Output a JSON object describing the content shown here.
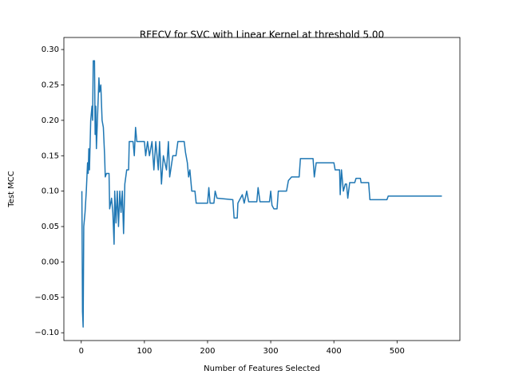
{
  "chart_data": {
    "type": "line",
    "title": "RFECV for SVC with Linear Kernel at threshold 5.00",
    "x_label": "Number of Features Selected",
    "y_label": "Test MCC",
    "x": [
      1,
      2,
      3,
      4,
      6,
      8,
      10,
      11,
      12,
      13,
      15,
      17,
      18,
      19,
      21,
      22,
      23,
      24,
      26,
      28,
      29,
      31,
      33,
      35,
      37,
      38,
      40,
      44,
      45,
      48,
      50,
      52,
      53,
      55,
      57,
      59,
      61,
      63,
      65,
      67,
      69,
      72,
      75,
      76,
      82,
      84,
      86,
      88,
      100,
      102,
      105,
      108,
      112,
      115,
      118,
      122,
      124,
      127,
      130,
      135,
      138,
      140,
      145,
      150,
      153,
      163,
      165,
      168,
      170,
      172,
      175,
      180,
      182,
      200,
      202,
      204,
      210,
      212,
      215,
      240,
      242,
      247,
      248,
      255,
      258,
      262,
      265,
      278,
      280,
      283,
      298,
      300,
      302,
      305,
      310,
      312,
      325,
      328,
      333,
      345,
      347,
      367,
      369,
      372,
      400,
      402,
      409,
      410,
      412,
      415,
      418,
      420,
      422,
      425,
      433,
      435,
      442,
      443,
      455,
      457,
      484,
      486,
      571
    ],
    "series": [
      {
        "name": "Test MCC",
        "color": "#1f77b4",
        "values": [
          0.1,
          -0.07,
          -0.092,
          0.05,
          0.07,
          0.1,
          0.14,
          0.125,
          0.16,
          0.13,
          0.2,
          0.22,
          0.2,
          0.284,
          0.284,
          0.18,
          0.22,
          0.16,
          0.21,
          0.26,
          0.24,
          0.25,
          0.2,
          0.19,
          0.15,
          0.12,
          0.125,
          0.125,
          0.075,
          0.09,
          0.07,
          0.025,
          0.1,
          0.055,
          0.1,
          0.05,
          0.1,
          0.07,
          0.1,
          0.04,
          0.11,
          0.13,
          0.13,
          0.17,
          0.17,
          0.15,
          0.19,
          0.17,
          0.17,
          0.15,
          0.17,
          0.15,
          0.17,
          0.13,
          0.17,
          0.13,
          0.17,
          0.11,
          0.15,
          0.13,
          0.17,
          0.12,
          0.15,
          0.15,
          0.17,
          0.17,
          0.155,
          0.14,
          0.12,
          0.13,
          0.1,
          0.1,
          0.083,
          0.083,
          0.105,
          0.083,
          0.083,
          0.1,
          0.09,
          0.088,
          0.062,
          0.062,
          0.083,
          0.095,
          0.083,
          0.1,
          0.085,
          0.085,
          0.105,
          0.085,
          0.085,
          0.1,
          0.08,
          0.075,
          0.075,
          0.1,
          0.1,
          0.115,
          0.12,
          0.12,
          0.146,
          0.146,
          0.12,
          0.14,
          0.14,
          0.13,
          0.13,
          0.095,
          0.13,
          0.1,
          0.11,
          0.11,
          0.09,
          0.112,
          0.112,
          0.118,
          0.118,
          0.112,
          0.112,
          0.088,
          0.088,
          0.093,
          0.093
        ]
      }
    ],
    "xlim": [
      -27.5,
      599.5
    ],
    "xticks": [
      0,
      100,
      200,
      300,
      400,
      500
    ],
    "ylim": [
      -0.111,
      0.317
    ],
    "yticks": [
      {
        "value": -0.1,
        "label": "−0.10"
      },
      {
        "value": -0.05,
        "label": "−0.05"
      },
      {
        "value": 0.0,
        "label": "0.00"
      },
      {
        "value": 0.05,
        "label": "0.05"
      },
      {
        "value": 0.1,
        "label": "0.10"
      },
      {
        "value": 0.15,
        "label": "0.15"
      },
      {
        "value": 0.2,
        "label": "0.20"
      },
      {
        "value": 0.25,
        "label": "0.25"
      },
      {
        "value": 0.3,
        "label": "0.30"
      }
    ]
  }
}
